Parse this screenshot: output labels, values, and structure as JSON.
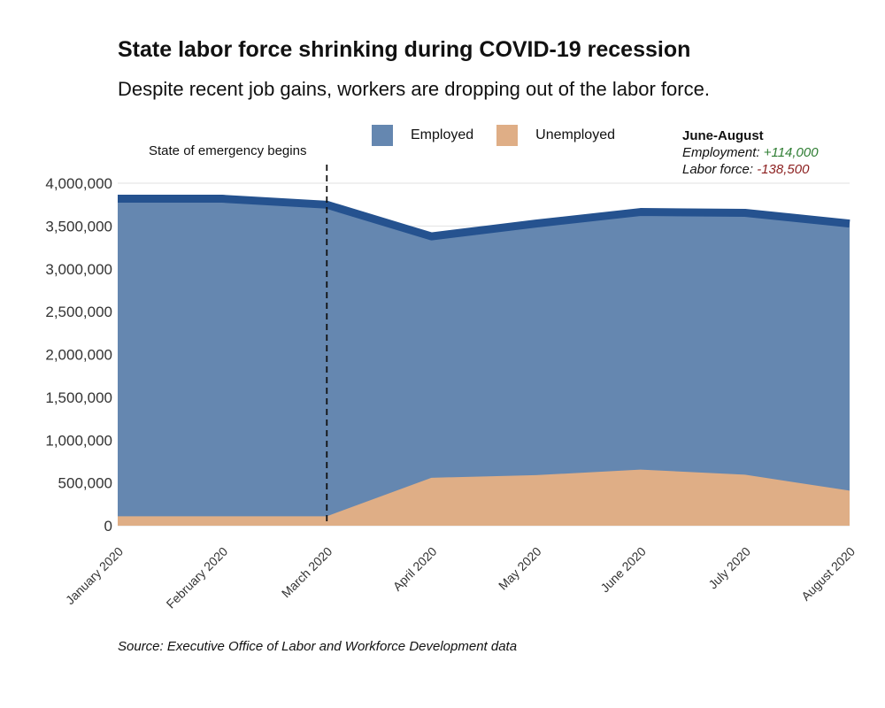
{
  "chart_data": {
    "type": "area",
    "title": "State labor force shrinking during COVID-19 recession",
    "subtitle": "Despite recent job gains, workers are dropping out of the labor force.",
    "categories": [
      "January 2020",
      "February 2020",
      "March 2020",
      "April 2020",
      "May 2020",
      "June 2020",
      "July 2020",
      "August 2020"
    ],
    "series": [
      {
        "name": "Unemployed",
        "color": "#dfae86",
        "values": [
          110000,
          110000,
          110000,
          560000,
          590000,
          655000,
          595000,
          410000
        ]
      },
      {
        "name": "Employed",
        "color": "#6587b0",
        "values": [
          3750000,
          3750000,
          3680000,
          2860000,
          2980000,
          3050000,
          3100000,
          3160000
        ]
      }
    ],
    "top_line_color": "#25528f",
    "ylim": [
      0,
      4000000
    ],
    "yticks": [
      "0",
      "500,000",
      "1,000,000",
      "1,500,000",
      "2,000,000",
      "2,500,000",
      "3,000,000",
      "3,500,000",
      "4,000,000"
    ],
    "ytick_values": [
      0,
      500000,
      1000000,
      1500000,
      2000000,
      2500000,
      3000000,
      3500000,
      4000000
    ],
    "xlabel": "",
    "ylabel": "",
    "grid": true,
    "legend_position": "top",
    "annotation": {
      "label": "State of emergency begins",
      "at": "March 2020",
      "style": "dashed"
    },
    "callout": {
      "heading": "June-August",
      "employment_label": "Employment: ",
      "employment_value": "+114,000",
      "employment_color": "#2e7d32",
      "labor_force_label": "Labor force: ",
      "labor_force_value": "-138,500",
      "labor_force_color": "#8b1e1e"
    },
    "source": "Source: Executive Office of Labor and Workforce Development data"
  }
}
